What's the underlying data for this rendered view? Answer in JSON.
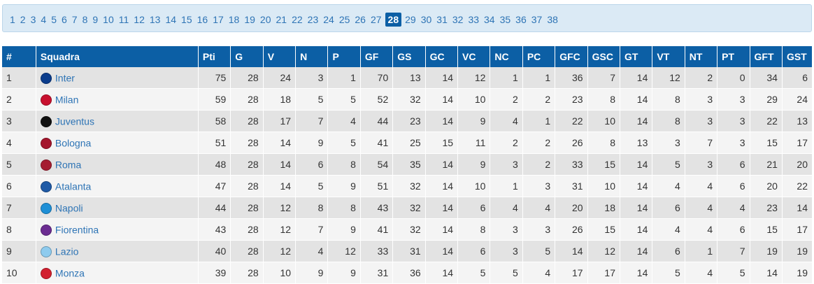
{
  "pages": {
    "items": [
      "1",
      "2",
      "3",
      "4",
      "5",
      "6",
      "7",
      "8",
      "9",
      "10",
      "11",
      "12",
      "13",
      "14",
      "15",
      "16",
      "17",
      "18",
      "19",
      "20",
      "21",
      "22",
      "23",
      "24",
      "25",
      "26",
      "27",
      "28",
      "29",
      "30",
      "31",
      "32",
      "33",
      "34",
      "35",
      "36",
      "37",
      "38"
    ],
    "current": "28"
  },
  "table": {
    "headers": [
      "#",
      "Squadra",
      "Pti",
      "G",
      "V",
      "N",
      "P",
      "GF",
      "GS",
      "GC",
      "VC",
      "NC",
      "PC",
      "GFC",
      "GSC",
      "GT",
      "VT",
      "NT",
      "PT",
      "GFT",
      "GST"
    ],
    "rows": [
      {
        "pos": "1",
        "team": "Inter",
        "logo": "inter-logo-icon",
        "color": "#0a3c8c",
        "stats": [
          "75",
          "28",
          "24",
          "3",
          "1",
          "70",
          "13",
          "14",
          "12",
          "1",
          "1",
          "36",
          "7",
          "14",
          "12",
          "2",
          "0",
          "34",
          "6"
        ]
      },
      {
        "pos": "2",
        "team": "Milan",
        "logo": "milan-logo-icon",
        "color": "#c8102e",
        "stats": [
          "59",
          "28",
          "18",
          "5",
          "5",
          "52",
          "32",
          "14",
          "10",
          "2",
          "2",
          "23",
          "8",
          "14",
          "8",
          "3",
          "3",
          "29",
          "24"
        ]
      },
      {
        "pos": "3",
        "team": "Juventus",
        "logo": "juventus-logo-icon",
        "color": "#111111",
        "stats": [
          "58",
          "28",
          "17",
          "7",
          "4",
          "44",
          "23",
          "14",
          "9",
          "4",
          "1",
          "22",
          "10",
          "14",
          "8",
          "3",
          "3",
          "22",
          "13"
        ]
      },
      {
        "pos": "4",
        "team": "Bologna",
        "logo": "bologna-logo-icon",
        "color": "#a4162d",
        "stats": [
          "51",
          "28",
          "14",
          "9",
          "5",
          "41",
          "25",
          "15",
          "11",
          "2",
          "2",
          "26",
          "8",
          "13",
          "3",
          "7",
          "3",
          "15",
          "17"
        ]
      },
      {
        "pos": "5",
        "team": "Roma",
        "logo": "roma-logo-icon",
        "color": "#a51c30",
        "stats": [
          "48",
          "28",
          "14",
          "6",
          "8",
          "54",
          "35",
          "14",
          "9",
          "3",
          "2",
          "33",
          "15",
          "14",
          "5",
          "3",
          "6",
          "21",
          "20"
        ]
      },
      {
        "pos": "6",
        "team": "Atalanta",
        "logo": "atalanta-logo-icon",
        "color": "#1f5aa6",
        "stats": [
          "47",
          "28",
          "14",
          "5",
          "9",
          "51",
          "32",
          "14",
          "10",
          "1",
          "3",
          "31",
          "10",
          "14",
          "4",
          "4",
          "6",
          "20",
          "22"
        ]
      },
      {
        "pos": "7",
        "team": "Napoli",
        "logo": "napoli-logo-icon",
        "color": "#1e8fd6",
        "stats": [
          "44",
          "28",
          "12",
          "8",
          "8",
          "43",
          "32",
          "14",
          "6",
          "4",
          "4",
          "20",
          "18",
          "14",
          "6",
          "4",
          "4",
          "23",
          "14"
        ]
      },
      {
        "pos": "8",
        "team": "Fiorentina",
        "logo": "fiorentina-logo-icon",
        "color": "#6b2c91",
        "stats": [
          "43",
          "28",
          "12",
          "7",
          "9",
          "41",
          "32",
          "14",
          "8",
          "3",
          "3",
          "26",
          "15",
          "14",
          "4",
          "4",
          "6",
          "15",
          "17"
        ]
      },
      {
        "pos": "9",
        "team": "Lazio",
        "logo": "lazio-logo-icon",
        "color": "#8ecbee",
        "stats": [
          "40",
          "28",
          "12",
          "4",
          "12",
          "33",
          "31",
          "14",
          "6",
          "3",
          "5",
          "14",
          "12",
          "14",
          "6",
          "1",
          "7",
          "19",
          "19"
        ]
      },
      {
        "pos": "10",
        "team": "Monza",
        "logo": "monza-logo-icon",
        "color": "#d2202f",
        "stats": [
          "39",
          "28",
          "10",
          "9",
          "9",
          "31",
          "36",
          "14",
          "5",
          "5",
          "4",
          "17",
          "17",
          "14",
          "5",
          "4",
          "5",
          "14",
          "19"
        ]
      }
    ]
  }
}
